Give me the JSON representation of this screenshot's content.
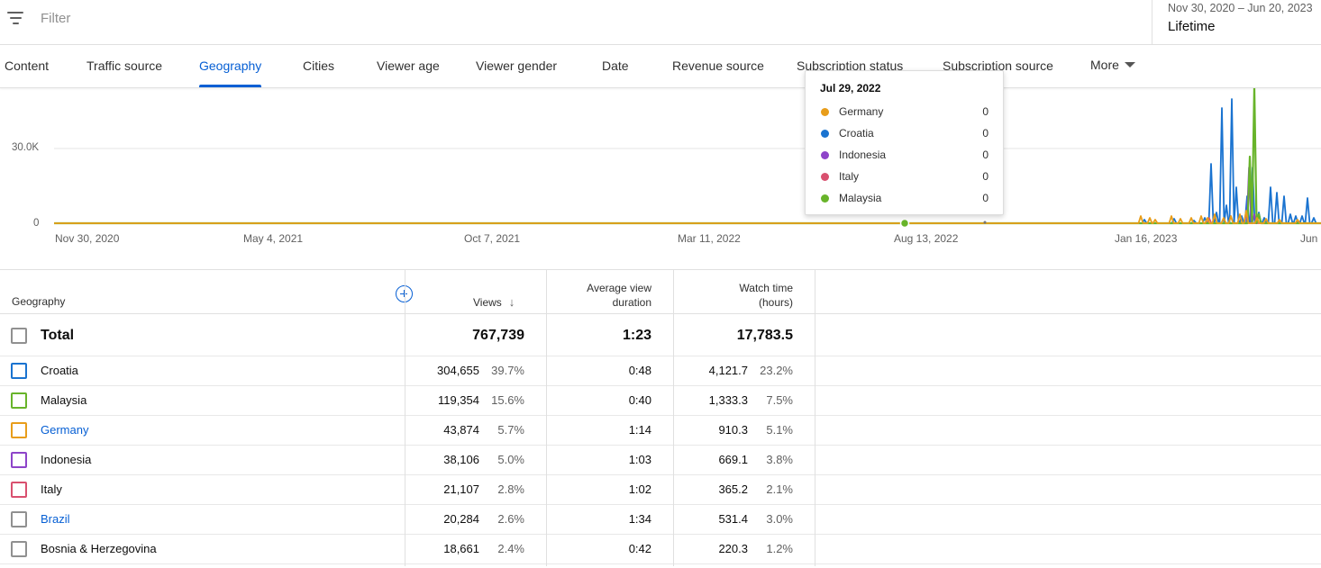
{
  "filter": {
    "placeholder": "Filter"
  },
  "date_range": {
    "range": "Nov 30, 2020 – Jun 20, 2023",
    "period": "Lifetime"
  },
  "tabs": [
    {
      "label": "Content"
    },
    {
      "label": "Traffic source"
    },
    {
      "label": "Geography",
      "active": true
    },
    {
      "label": "Cities"
    },
    {
      "label": "Viewer age"
    },
    {
      "label": "Viewer gender"
    },
    {
      "label": "Date"
    },
    {
      "label": "Revenue source"
    },
    {
      "label": "Subscription status"
    },
    {
      "label": "Subscription source"
    },
    {
      "label": "More"
    }
  ],
  "chart_data": {
    "type": "line",
    "y_ticks": [
      "30.0K",
      "0"
    ],
    "x_ticks": [
      "Nov 30, 2020",
      "May 4, 2021",
      "Oct 7, 2021",
      "Mar 11, 2022",
      "Aug 13, 2022",
      "Jan 16, 2023",
      "Jun"
    ],
    "series": [
      {
        "name": "Germany",
        "color": "#e89d1a"
      },
      {
        "name": "Croatia",
        "color": "#1a73d0"
      },
      {
        "name": "Indonesia",
        "color": "#8e44c9"
      },
      {
        "name": "Italy",
        "color": "#d9506f"
      },
      {
        "name": "Malaysia",
        "color": "#68b42a"
      }
    ],
    "tooltip": {
      "date": "Jul 29, 2022",
      "rows": [
        {
          "name": "Germany",
          "value": "0",
          "color": "#e89d1a"
        },
        {
          "name": "Croatia",
          "value": "0",
          "color": "#1a73d0"
        },
        {
          "name": "Indonesia",
          "value": "0",
          "color": "#8e44c9"
        },
        {
          "name": "Italy",
          "value": "0",
          "color": "#d9506f"
        },
        {
          "name": "Malaysia",
          "value": "0",
          "color": "#68b42a"
        }
      ]
    }
  },
  "table": {
    "headers": {
      "geography": "Geography",
      "views": "Views",
      "avg_duration_1": "Average view",
      "avg_duration_2": "duration",
      "watch_time_1": "Watch time",
      "watch_time_2": "(hours)"
    },
    "total": {
      "label": "Total",
      "views": "767,739",
      "avg": "1:23",
      "watch": "17,783.5"
    },
    "rows": [
      {
        "name": "Croatia",
        "views": "304,655",
        "views_pct": "39.7%",
        "avg": "0:48",
        "watch": "4,121.7",
        "watch_pct": "23.2%",
        "color": "#1a73d0",
        "link": false
      },
      {
        "name": "Malaysia",
        "views": "119,354",
        "views_pct": "15.6%",
        "avg": "0:40",
        "watch": "1,333.3",
        "watch_pct": "7.5%",
        "color": "#68b42a",
        "link": false
      },
      {
        "name": "Germany",
        "views": "43,874",
        "views_pct": "5.7%",
        "avg": "1:14",
        "watch": "910.3",
        "watch_pct": "5.1%",
        "color": "#e89d1a",
        "link": true
      },
      {
        "name": "Indonesia",
        "views": "38,106",
        "views_pct": "5.0%",
        "avg": "1:03",
        "watch": "669.1",
        "watch_pct": "3.8%",
        "color": "#8e44c9",
        "link": false
      },
      {
        "name": "Italy",
        "views": "21,107",
        "views_pct": "2.8%",
        "avg": "1:02",
        "watch": "365.2",
        "watch_pct": "2.1%",
        "color": "#d9506f",
        "link": false
      },
      {
        "name": "Brazil",
        "views": "20,284",
        "views_pct": "2.6%",
        "avg": "1:34",
        "watch": "531.4",
        "watch_pct": "3.0%",
        "color": "#909090",
        "link": true
      },
      {
        "name": "Bosnia & Herzegovina",
        "views": "18,661",
        "views_pct": "2.4%",
        "avg": "0:42",
        "watch": "220.3",
        "watch_pct": "1.2%",
        "color": "#909090",
        "link": false
      }
    ]
  }
}
